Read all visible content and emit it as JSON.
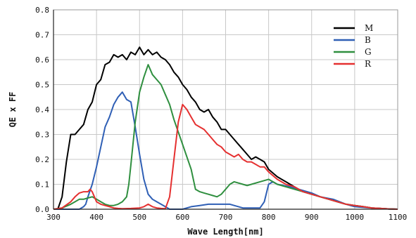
{
  "chart_data": {
    "type": "line",
    "title": "",
    "xlabel": "Wave Length[nm]",
    "ylabel": "QE x FF",
    "xlim": [
      300,
      1100
    ],
    "ylim": [
      0,
      0.8
    ],
    "xticks": [
      300,
      400,
      500,
      600,
      700,
      800,
      900,
      1000,
      1100
    ],
    "yticks": [
      0.0,
      0.1,
      0.2,
      0.3,
      0.4,
      0.5,
      0.6,
      0.7,
      0.8
    ],
    "xtick_labels": [
      "300",
      "400",
      "500",
      "600",
      "700",
      "800",
      "900",
      "1000",
      "1100"
    ],
    "ytick_labels": [
      "0.0",
      "0.1",
      "0.2",
      "0.3",
      "0.4",
      "0.5",
      "0.6",
      "0.7",
      "0.8"
    ],
    "grid": true,
    "legend_position": "top-right",
    "series": [
      {
        "name": "M",
        "color": "#000000",
        "x": [
          310,
          320,
          330,
          340,
          350,
          360,
          370,
          380,
          390,
          400,
          410,
          420,
          430,
          440,
          450,
          460,
          470,
          480,
          490,
          500,
          510,
          520,
          530,
          540,
          550,
          560,
          570,
          580,
          590,
          600,
          610,
          620,
          630,
          640,
          650,
          660,
          670,
          680,
          690,
          700,
          710,
          720,
          730,
          740,
          750,
          760,
          770,
          780,
          790,
          800,
          820,
          840,
          860,
          880,
          900,
          920,
          940,
          960,
          980,
          1000,
          1020,
          1040,
          1060,
          1080,
          1100
        ],
        "y": [
          0.0,
          0.05,
          0.19,
          0.3,
          0.3,
          0.32,
          0.34,
          0.4,
          0.43,
          0.5,
          0.52,
          0.58,
          0.59,
          0.62,
          0.61,
          0.62,
          0.6,
          0.63,
          0.62,
          0.65,
          0.62,
          0.64,
          0.62,
          0.63,
          0.61,
          0.6,
          0.58,
          0.55,
          0.53,
          0.5,
          0.48,
          0.45,
          0.43,
          0.4,
          0.39,
          0.4,
          0.37,
          0.35,
          0.32,
          0.32,
          0.3,
          0.28,
          0.26,
          0.24,
          0.22,
          0.2,
          0.21,
          0.2,
          0.19,
          0.16,
          0.13,
          0.11,
          0.09,
          0.07,
          0.06,
          0.05,
          0.04,
          0.03,
          0.02,
          0.015,
          0.01,
          0.005,
          0.003,
          0.001,
          0.0
        ]
      },
      {
        "name": "B",
        "color": "#2f5fb5",
        "x": [
          300,
          360,
          370,
          375,
          380,
          390,
          400,
          410,
          420,
          430,
          440,
          450,
          460,
          470,
          480,
          490,
          500,
          510,
          520,
          530,
          540,
          550,
          560,
          570,
          580,
          600,
          620,
          640,
          660,
          680,
          700,
          710,
          720,
          740,
          760,
          780,
          790,
          800,
          810,
          820,
          850,
          870,
          900,
          920,
          950,
          980,
          1000,
          1040,
          1080,
          1100
        ],
        "y": [
          0.0,
          0.0,
          0.01,
          0.02,
          0.05,
          0.1,
          0.17,
          0.25,
          0.33,
          0.37,
          0.42,
          0.45,
          0.47,
          0.44,
          0.43,
          0.33,
          0.22,
          0.12,
          0.06,
          0.04,
          0.03,
          0.02,
          0.01,
          0.0,
          0.0,
          0.0,
          0.01,
          0.015,
          0.02,
          0.02,
          0.02,
          0.02,
          0.015,
          0.005,
          0.005,
          0.005,
          0.03,
          0.1,
          0.11,
          0.1,
          0.09,
          0.08,
          0.065,
          0.05,
          0.04,
          0.02,
          0.01,
          0.005,
          0.001,
          0.0
        ]
      },
      {
        "name": "G",
        "color": "#2f8f3f",
        "x": [
          300,
          320,
          340,
          350,
          360,
          370,
          380,
          390,
          400,
          410,
          420,
          430,
          440,
          450,
          460,
          470,
          475,
          480,
          490,
          500,
          510,
          520,
          530,
          540,
          550,
          560,
          570,
          580,
          600,
          620,
          630,
          640,
          650,
          660,
          670,
          680,
          690,
          700,
          710,
          720,
          730,
          740,
          750,
          760,
          780,
          800,
          820,
          840,
          860,
          880,
          900,
          920,
          940,
          960,
          980,
          1000,
          1020,
          1040,
          1060,
          1080,
          1100
        ],
        "y": [
          0.0,
          0.005,
          0.02,
          0.03,
          0.04,
          0.04,
          0.045,
          0.05,
          0.04,
          0.03,
          0.02,
          0.015,
          0.015,
          0.02,
          0.03,
          0.05,
          0.1,
          0.18,
          0.35,
          0.47,
          0.53,
          0.58,
          0.54,
          0.52,
          0.5,
          0.46,
          0.42,
          0.36,
          0.26,
          0.16,
          0.08,
          0.07,
          0.065,
          0.06,
          0.055,
          0.05,
          0.06,
          0.08,
          0.1,
          0.11,
          0.105,
          0.1,
          0.095,
          0.1,
          0.11,
          0.12,
          0.1,
          0.09,
          0.08,
          0.07,
          0.06,
          0.05,
          0.04,
          0.03,
          0.02,
          0.015,
          0.01,
          0.005,
          0.003,
          0.001,
          0.0
        ]
      },
      {
        "name": "R",
        "color": "#e53030",
        "x": [
          300,
          320,
          340,
          350,
          360,
          370,
          380,
          385,
          390,
          395,
          400,
          410,
          420,
          430,
          440,
          450,
          460,
          480,
          500,
          510,
          520,
          530,
          540,
          550,
          560,
          570,
          580,
          590,
          600,
          610,
          620,
          630,
          640,
          650,
          660,
          670,
          680,
          690,
          700,
          710,
          720,
          730,
          740,
          750,
          760,
          770,
          780,
          790,
          800,
          820,
          840,
          860,
          880,
          900,
          920,
          940,
          960,
          980,
          1000,
          1020,
          1040,
          1060,
          1080,
          1100
        ],
        "y": [
          0.0,
          0.005,
          0.03,
          0.05,
          0.065,
          0.07,
          0.07,
          0.08,
          0.07,
          0.05,
          0.03,
          0.02,
          0.015,
          0.01,
          0.005,
          0.003,
          0.002,
          0.003,
          0.005,
          0.01,
          0.02,
          0.01,
          0.005,
          0.003,
          0.002,
          0.05,
          0.2,
          0.35,
          0.42,
          0.4,
          0.37,
          0.34,
          0.33,
          0.32,
          0.3,
          0.28,
          0.26,
          0.25,
          0.23,
          0.22,
          0.21,
          0.22,
          0.2,
          0.19,
          0.19,
          0.18,
          0.17,
          0.17,
          0.15,
          0.12,
          0.1,
          0.09,
          0.07,
          0.06,
          0.05,
          0.04,
          0.03,
          0.02,
          0.015,
          0.01,
          0.005,
          0.003,
          0.001,
          0.0
        ]
      }
    ]
  }
}
